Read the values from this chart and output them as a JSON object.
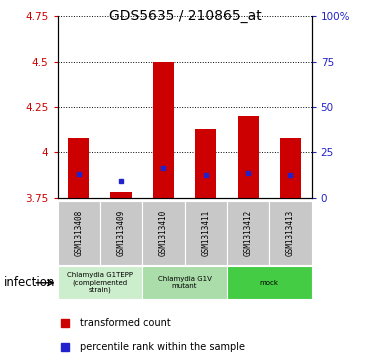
{
  "title": "GDS5635 / 210865_at",
  "samples": [
    "GSM1313408",
    "GSM1313409",
    "GSM1313410",
    "GSM1313411",
    "GSM1313412",
    "GSM1313413"
  ],
  "bar_bottoms": [
    3.75,
    3.75,
    3.75,
    3.75,
    3.75,
    3.75
  ],
  "bar_tops": [
    4.08,
    3.78,
    4.5,
    4.13,
    4.2,
    4.08
  ],
  "blue_dots": [
    3.88,
    3.845,
    3.915,
    3.875,
    3.885,
    3.875
  ],
  "ylim": [
    3.75,
    4.75
  ],
  "yticks_left": [
    3.75,
    4.0,
    4.25,
    4.5,
    4.75
  ],
  "ytick_labels_left": [
    "3.75",
    "4",
    "4.25",
    "4.5",
    "4.75"
  ],
  "ytick_labels_right": [
    "0",
    "25",
    "50",
    "75",
    "100%"
  ],
  "bar_color": "#cc0000",
  "dot_color": "#2222cc",
  "bar_width": 0.5,
  "tick_color_left": "#cc0000",
  "tick_color_right": "#2222cc",
  "grid_color": "black",
  "group_colors": [
    "#cceecc",
    "#aaddaa",
    "#44cc44"
  ],
  "group_labels": [
    "Chlamydia G1TEPP\n(complemented\nstrain)",
    "Chlamydia G1V\nmutant",
    "mock"
  ],
  "group_ranges": [
    [
      0,
      1
    ],
    [
      2,
      3
    ],
    [
      4,
      5
    ]
  ],
  "legend_labels": [
    "transformed count",
    "percentile rank within the sample"
  ],
  "legend_colors": [
    "#cc0000",
    "#2222cc"
  ]
}
